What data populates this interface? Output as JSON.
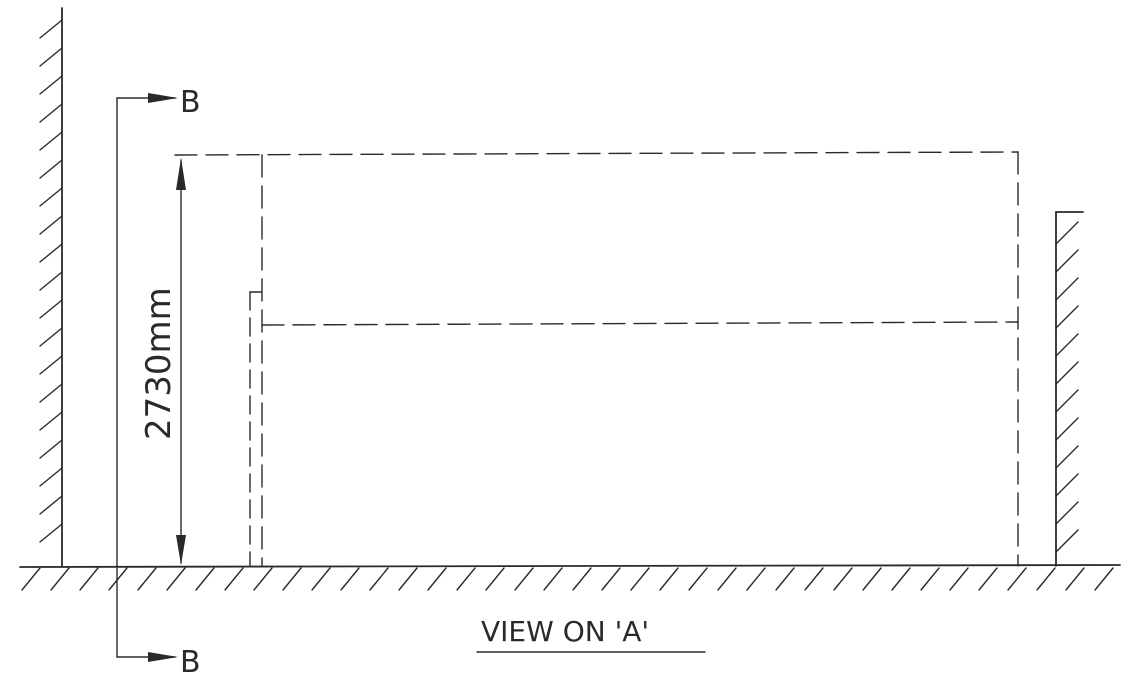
{
  "drawing": {
    "dimension_label": "2730mm",
    "section_marker_top": "B",
    "section_marker_bottom": "B",
    "view_title": "VIEW ON 'A'"
  },
  "colors": {
    "ink": "#2a2a2a",
    "paper": "#ffffff"
  }
}
